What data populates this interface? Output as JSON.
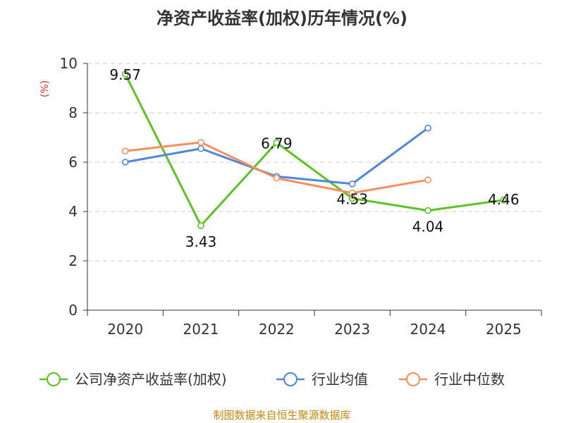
{
  "chart_data": {
    "type": "line",
    "title": "净资产收益率(加权)历年情况(%)",
    "ylabel": "(%)",
    "xlabel": "",
    "ylim": [
      0,
      10
    ],
    "y_ticks": [
      0,
      2,
      4,
      6,
      8,
      10
    ],
    "grid": true,
    "categories": [
      "2020",
      "2021",
      "2022",
      "2023",
      "2024",
      "2025"
    ],
    "series": [
      {
        "name": "公司净资产收益率(加权)",
        "color": "#5bc424",
        "values": [
          9.57,
          3.43,
          6.79,
          4.53,
          4.04,
          4.46
        ],
        "labeled": true,
        "labels": [
          "9.57",
          "3.43",
          "6.79",
          "4.53",
          "4.04",
          "4.46"
        ]
      },
      {
        "name": "行业均值",
        "color": "#4f86db",
        "values": [
          6.0,
          6.55,
          5.42,
          5.12,
          7.38,
          null
        ],
        "labeled": false
      },
      {
        "name": "行业中位数",
        "color": "#f5905e",
        "values": [
          6.45,
          6.8,
          5.35,
          4.75,
          5.28,
          null
        ],
        "labeled": false
      }
    ],
    "legend_position": "bottom"
  },
  "source_text": "制图数据来自恒生聚源数据库",
  "colors": {
    "axis": "#333333",
    "grid": "#cccccc",
    "ylabel": "#e0302a",
    "source": "#c8860d"
  }
}
